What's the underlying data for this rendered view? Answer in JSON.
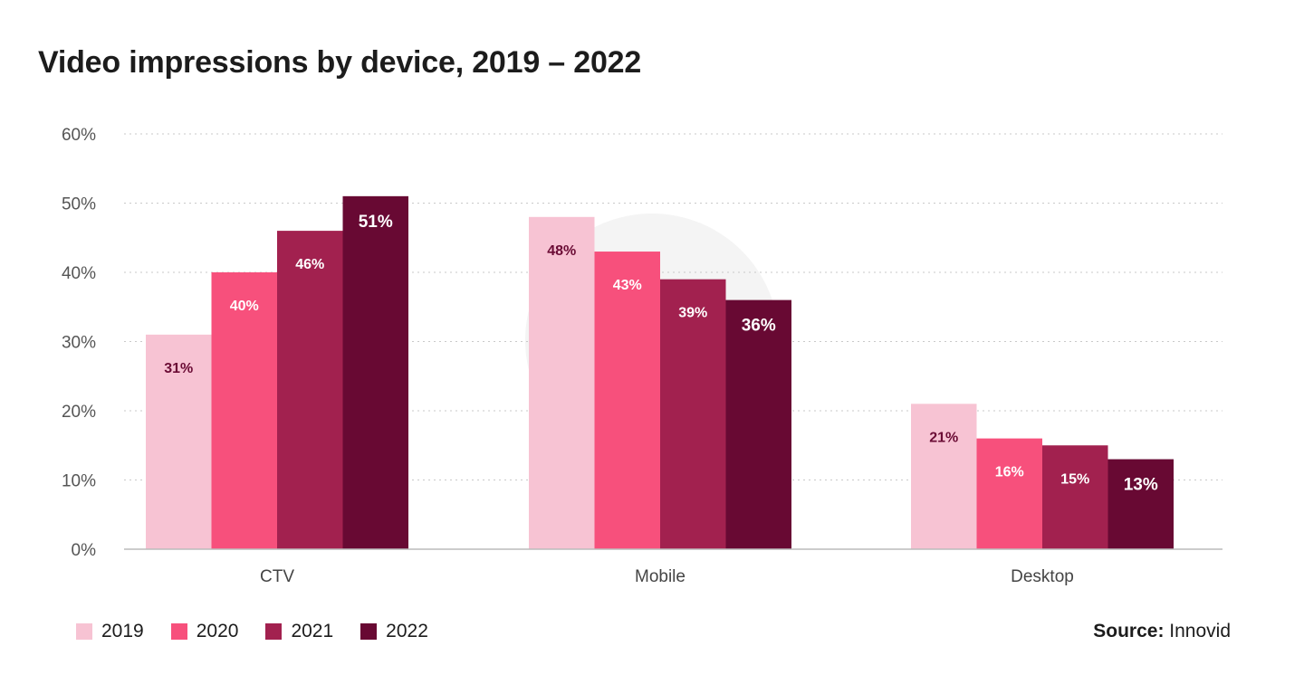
{
  "chart_data": {
    "type": "bar",
    "title": "Video impressions by device, 2019 – 2022",
    "categories": [
      "CTV",
      "Mobile",
      "Desktop"
    ],
    "series": [
      {
        "name": "2019",
        "color": "#f7c3d3",
        "values": [
          31,
          48,
          21
        ],
        "labels": [
          "31%",
          "48%",
          "21%"
        ],
        "label_color": "#6b0c35"
      },
      {
        "name": "2020",
        "color": "#f7507c",
        "values": [
          40,
          43,
          16
        ],
        "labels": [
          "40%",
          "43%",
          "16%"
        ],
        "label_color": "#ffffff"
      },
      {
        "name": "2021",
        "color": "#a2214f",
        "values": [
          46,
          39,
          15
        ],
        "labels": [
          "46%",
          "39%",
          "15%"
        ],
        "label_color": "#ffffff"
      },
      {
        "name": "2022",
        "color": "#680933",
        "values": [
          51,
          36,
          13
        ],
        "labels": [
          "51%",
          "36%",
          "13%"
        ],
        "label_color": "#ffffff"
      }
    ],
    "yticks": [
      "0%",
      "10%",
      "20%",
      "30%",
      "40%",
      "50%",
      "60%"
    ],
    "ylim": [
      0,
      60
    ],
    "grid": true,
    "legend_position": "bottom-left",
    "xlabel": "",
    "ylabel": ""
  },
  "source": {
    "label": "Source:",
    "value": "Innovid"
  }
}
